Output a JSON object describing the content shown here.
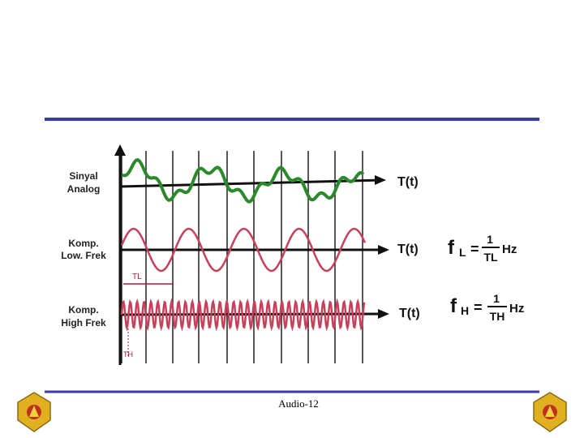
{
  "rows": [
    {
      "label": [
        "Sinyal",
        "Analog"
      ],
      "axis": "T(t)"
    },
    {
      "label": [
        "Komp.",
        "Low. Frek"
      ],
      "axis": "T(t)"
    },
    {
      "label": [
        "Komp.",
        "High Frek"
      ],
      "axis": "T(t)"
    }
  ],
  "periods": [
    "TL",
    "TH"
  ],
  "formulas": [
    {
      "symbol": "f",
      "sub": "L",
      "equals": "=",
      "numerator": "1",
      "denominator": "TL",
      "unit": "Hz"
    },
    {
      "symbol": "f",
      "sub": "H",
      "equals": "=",
      "numerator": "1",
      "denominator": "TH",
      "unit": "Hz"
    }
  ],
  "footer": "Audio-12"
}
